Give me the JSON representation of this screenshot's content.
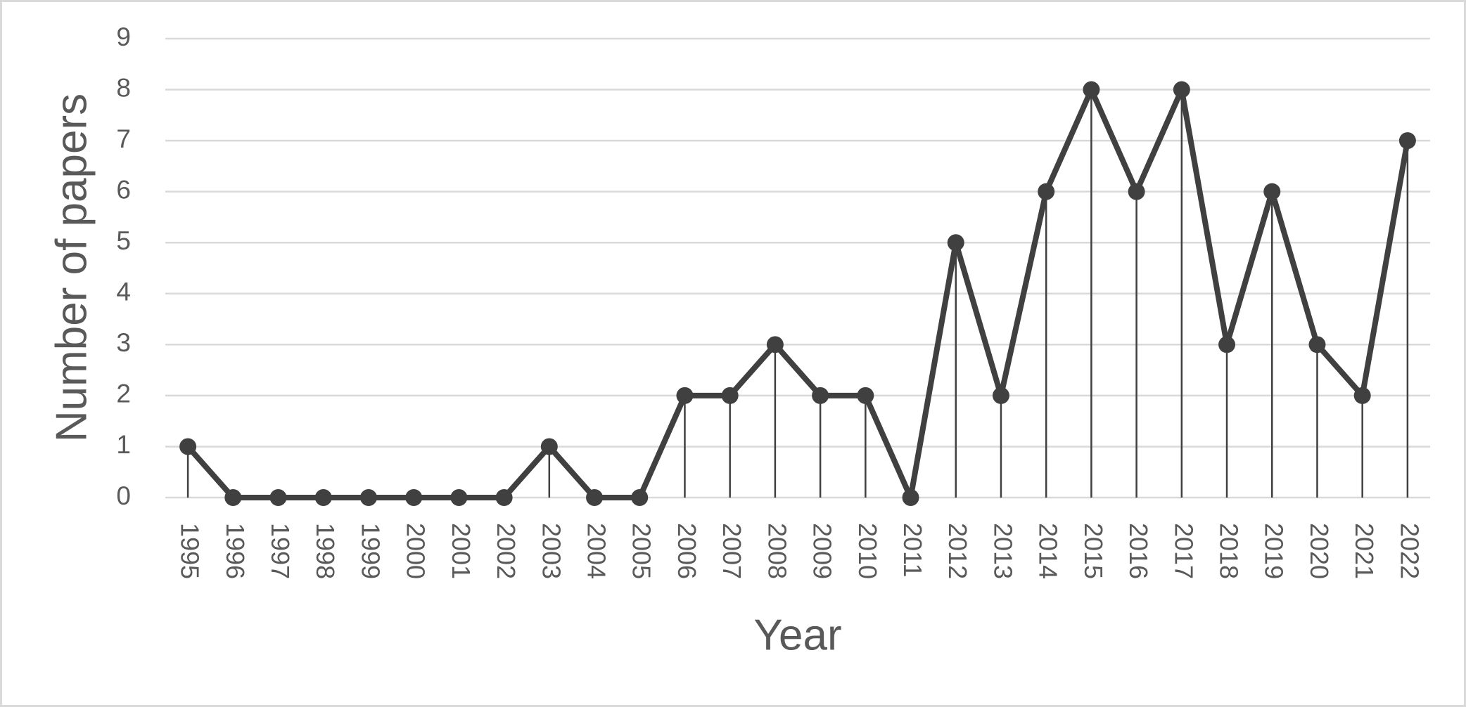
{
  "chart_data": {
    "type": "line",
    "x_label": "Year",
    "y_label": "Number of papers",
    "categories": [
      "1995",
      "1996",
      "1997",
      "1998",
      "1999",
      "2000",
      "2001",
      "2002",
      "2003",
      "2004",
      "2005",
      "2006",
      "2007",
      "2008",
      "2009",
      "2010",
      "2011",
      "2012",
      "2013",
      "2014",
      "2015",
      "2016",
      "2017",
      "2018",
      "2019",
      "2020",
      "2021",
      "2022"
    ],
    "values": [
      1,
      0,
      0,
      0,
      0,
      0,
      0,
      0,
      1,
      0,
      0,
      2,
      2,
      3,
      2,
      2,
      0,
      5,
      2,
      6,
      8,
      6,
      8,
      3,
      6,
      3,
      2,
      7
    ],
    "color": "#404040",
    "ylim": [
      0,
      9
    ],
    "yticks": [
      0,
      1,
      2,
      3,
      4,
      5,
      6,
      7,
      8,
      9
    ],
    "grid": true,
    "drop_lines": true,
    "markers": true
  }
}
